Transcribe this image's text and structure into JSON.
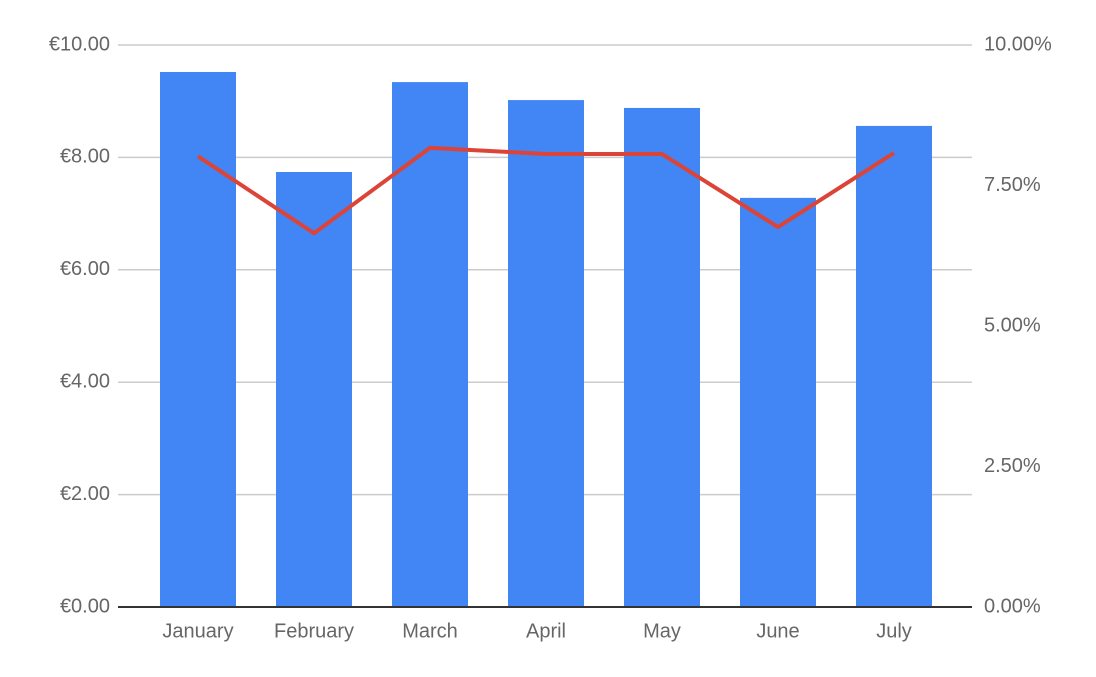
{
  "chart_data": {
    "type": "bar",
    "categories": [
      "January",
      "February",
      "March",
      "April",
      "May",
      "June",
      "July"
    ],
    "series": [
      {
        "type": "bar",
        "color": "#4285f4",
        "values": [
          9.52,
          7.74,
          9.34,
          9.02,
          8.88,
          7.28,
          8.56
        ]
      },
      {
        "type": "line",
        "axis": "y2",
        "color": "#db4437",
        "values": [
          8.02,
          6.65,
          8.17,
          8.06,
          8.06,
          6.76,
          8.08
        ]
      }
    ],
    "ylim": [
      0,
      10
    ],
    "yticks": [
      {
        "value": 0,
        "label": "€0.00"
      },
      {
        "value": 2,
        "label": "€2.00"
      },
      {
        "value": 4,
        "label": "€4.00"
      },
      {
        "value": 6,
        "label": "€6.00"
      },
      {
        "value": 8,
        "label": "€8.00"
      },
      {
        "value": 10,
        "label": "€10.00"
      }
    ],
    "y2lim": [
      0,
      10
    ],
    "y2ticks": [
      {
        "value": 0,
        "label": "0.00%"
      },
      {
        "value": 2.5,
        "label": "2.50%"
      },
      {
        "value": 5,
        "label": "5.00%"
      },
      {
        "value": 7.5,
        "label": "7.50%"
      },
      {
        "value": 10,
        "label": "10.00%"
      }
    ],
    "grid": true
  }
}
